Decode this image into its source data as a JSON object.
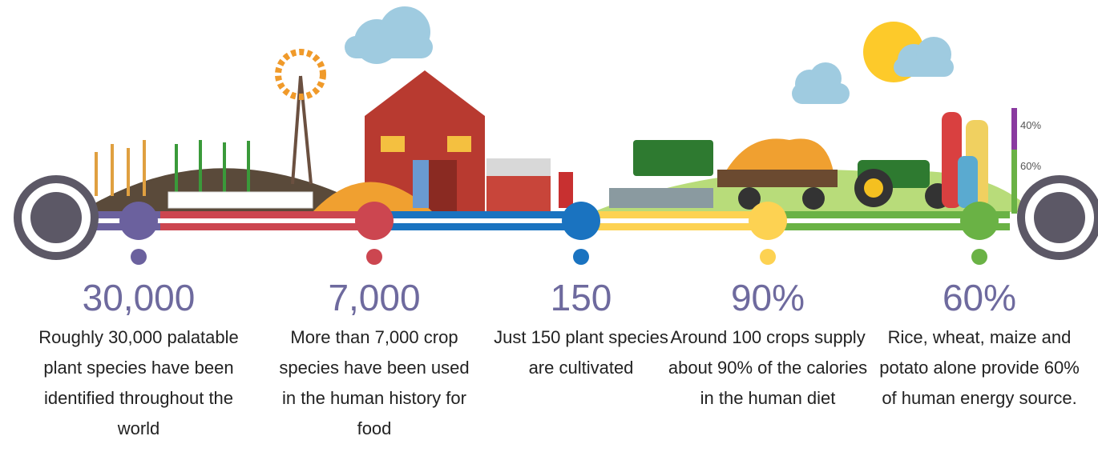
{
  "items": [
    {
      "stat": "30,000",
      "text": "Roughly 30,000 palatable plant species have been identified throughout the world"
    },
    {
      "stat": "7,000",
      "text": "More than 7,000 crop species have been used in the human history for food"
    },
    {
      "stat": "150",
      "text": "Just 150 plant species are cultivated"
    },
    {
      "stat": "90%",
      "text": "Around 100 crops supply about 90% of the calories in the human diet"
    },
    {
      "stat": "60%",
      "text": "Rice, wheat, maize and potato alone provide 60% of human energy source."
    }
  ],
  "bar_labels": [
    "40%",
    "60%"
  ]
}
